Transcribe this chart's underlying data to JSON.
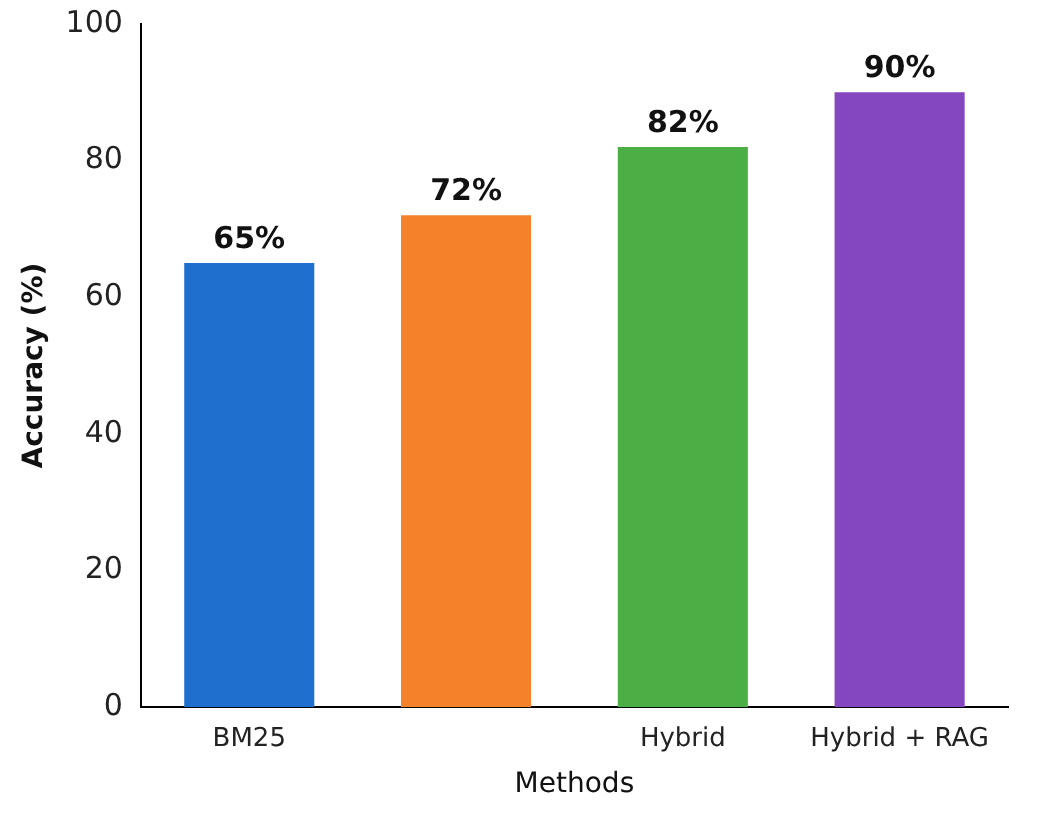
{
  "chart_data": {
    "type": "bar",
    "xlabel": "Methods",
    "ylabel": "Accuracy (%)",
    "categories": [
      "BM25",
      null,
      "Hybrid",
      "Hybrid + RAG"
    ],
    "values": [
      65,
      72,
      82,
      90
    ],
    "value_labels": [
      "65%",
      "72%",
      "82%",
      "90%"
    ],
    "colors": [
      "#1f6fcf",
      "#f5822a",
      "#4caf45",
      "#8447c0"
    ],
    "ylim": [
      0,
      100
    ],
    "yticks": [
      0,
      20,
      40,
      60,
      80,
      100
    ],
    "grid": false,
    "legend": false
  }
}
